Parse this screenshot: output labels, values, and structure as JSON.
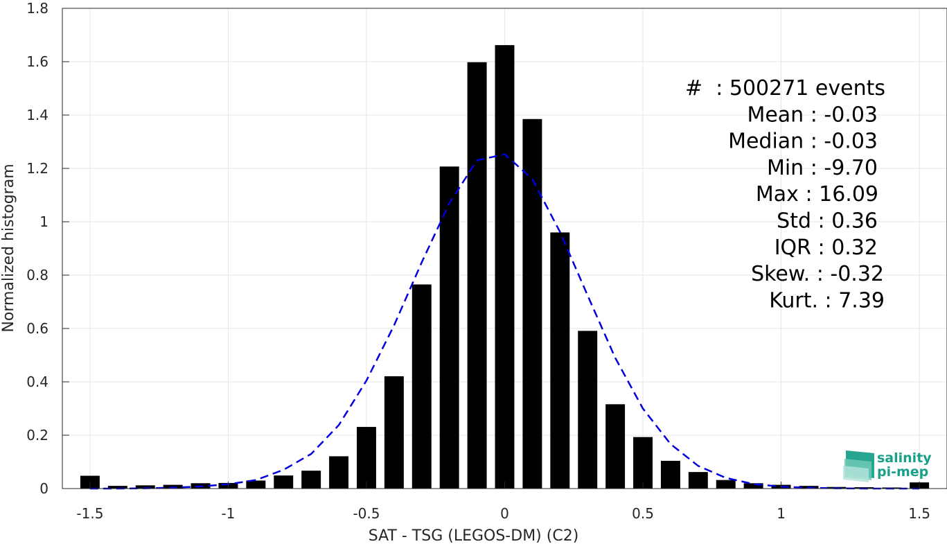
{
  "chart_data": {
    "type": "bar",
    "xlabel": "SAT - TSG (LEGOS-DM) (C2)",
    "ylabel": "Normalized histogram",
    "xlim": [
      -1.6,
      1.6
    ],
    "ylim": [
      0,
      1.8
    ],
    "x_ticks": [
      -1.5,
      -1,
      -0.5,
      0,
      0.5,
      1,
      1.5
    ],
    "x_tick_labels": [
      "-1.5",
      "-1",
      "-0.5",
      "0",
      "0.5",
      "1",
      "1.5"
    ],
    "y_ticks": [
      0,
      0.2,
      0.4,
      0.6,
      0.8,
      1,
      1.2,
      1.4,
      1.6,
      1.8
    ],
    "y_tick_labels": [
      "0",
      "0.2",
      "0.4",
      "0.6",
      "0.8",
      "1",
      "1.2",
      "1.4",
      "1.6",
      "1.8"
    ],
    "grid": true,
    "bar_color": "#000000",
    "bar_width": 0.07,
    "bins": [
      -1.5,
      -1.4,
      -1.3,
      -1.2,
      -1.1,
      -1.0,
      -0.9,
      -0.8,
      -0.7,
      -0.6,
      -0.5,
      -0.4,
      -0.3,
      -0.2,
      -0.1,
      0.0,
      0.1,
      0.2,
      0.3,
      0.4,
      0.5,
      0.6,
      0.7,
      0.8,
      0.9,
      1.0,
      1.1,
      1.2,
      1.3,
      1.4,
      1.5
    ],
    "values": [
      0.048,
      0.01,
      0.012,
      0.014,
      0.02,
      0.021,
      0.03,
      0.049,
      0.067,
      0.121,
      0.231,
      0.421,
      0.765,
      1.207,
      1.598,
      1.662,
      1.385,
      0.96,
      0.591,
      0.316,
      0.193,
      0.104,
      0.062,
      0.032,
      0.02,
      0.014,
      0.01,
      0.006,
      0.005,
      0.004,
      0.023
    ],
    "fit_curve": {
      "style": "dashed",
      "color": "#0000dd",
      "x": [
        -1.5,
        -1.4,
        -1.3,
        -1.2,
        -1.1,
        -1.0,
        -0.9,
        -0.8,
        -0.7,
        -0.6,
        -0.5,
        -0.4,
        -0.3,
        -0.2,
        -0.1,
        0.0,
        0.1,
        0.2,
        0.3,
        0.4,
        0.5,
        0.6,
        0.7,
        0.8,
        0.9,
        1.0,
        1.1,
        1.2,
        1.3,
        1.4,
        1.5
      ],
      "y": [
        0.0,
        0.0,
        0.001,
        0.003,
        0.008,
        0.016,
        0.032,
        0.07,
        0.13,
        0.238,
        0.405,
        0.612,
        0.848,
        1.07,
        1.23,
        1.253,
        1.16,
        0.962,
        0.724,
        0.49,
        0.3,
        0.167,
        0.085,
        0.04,
        0.017,
        0.007,
        0.003,
        0.001,
        0.0,
        0.0,
        0.0
      ]
    },
    "annotations": [
      "#  : 500271 events",
      "Mean : -0.03",
      "Median : -0.03",
      "Min : -9.70",
      "Max : 16.09",
      "Std : 0.36",
      "IQR : 0.32",
      "Skew. : -0.32",
      "Kurt. : 7.39"
    ]
  },
  "logo": {
    "line1": "salinity",
    "line2": "pi-mep",
    "color": "#1aa08a"
  }
}
